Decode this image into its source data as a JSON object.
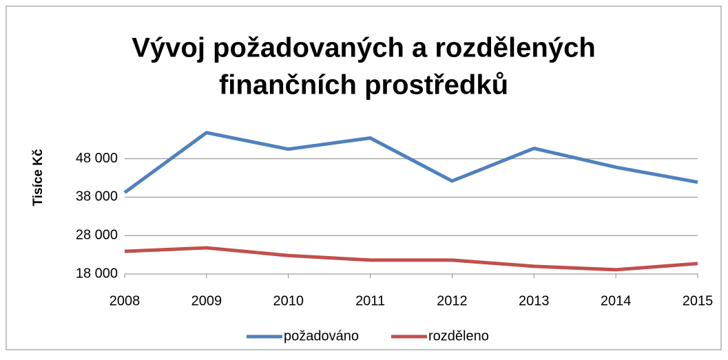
{
  "chart_data": {
    "type": "line",
    "title": [
      "Vývoj požadovaných a rozdělených",
      "finančních prostředků"
    ],
    "y_label": "Tisíce Kč",
    "categories": [
      "2008",
      "2009",
      "2010",
      "2011",
      "2012",
      "2013",
      "2014",
      "2015"
    ],
    "series": [
      {
        "name": "požadováno",
        "color": "#4f81bd",
        "values": [
          39200,
          54800,
          50500,
          53400,
          42200,
          50700,
          45800,
          41900
        ]
      },
      {
        "name": "rozděleno",
        "color": "#c0504d",
        "values": [
          23900,
          24800,
          22800,
          21600,
          21600,
          20000,
          19100,
          20700
        ]
      }
    ],
    "ylim": [
      18000,
      56000
    ],
    "yticks": [
      {
        "value": 18000,
        "label": "18 000"
      },
      {
        "value": 28000,
        "label": "28 000"
      },
      {
        "value": 38000,
        "label": "38 000"
      },
      {
        "value": 48000,
        "label": "48 000"
      }
    ],
    "grid": true,
    "legend": "bottom"
  }
}
